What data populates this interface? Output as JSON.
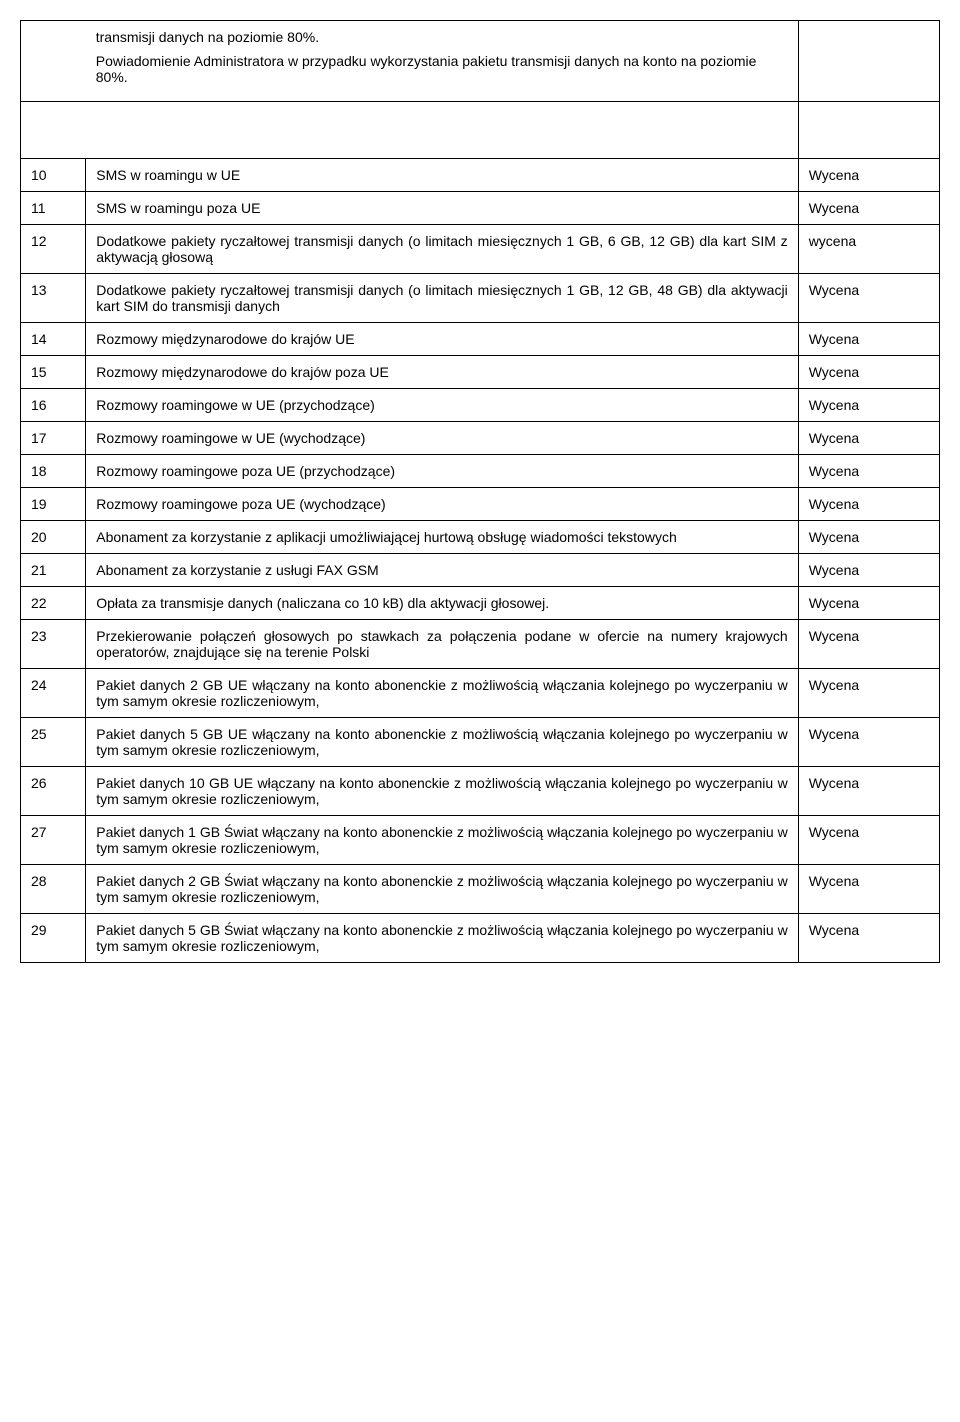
{
  "intro": {
    "line1": "transmisji danych na poziomie 80%.",
    "line2": "Powiadomienie Administratora w przypadku wykorzystania pakietu transmisji danych na konto na poziomie 80%."
  },
  "rows": [
    {
      "num": "10",
      "desc": "SMS w roamingu w UE",
      "val": "Wycena",
      "justify": false
    },
    {
      "num": "11",
      "desc": "SMS w roamingu poza UE",
      "val": "Wycena",
      "justify": false
    },
    {
      "num": "12",
      "desc": "Dodatkowe pakiety ryczałtowej transmisji danych (o limitach miesięcznych 1 GB, 6 GB, 12 GB) dla kart SIM z aktywacją głosową",
      "val": "wycena",
      "justify": true
    },
    {
      "num": "13",
      "desc": "Dodatkowe pakiety ryczałtowej transmisji danych (o limitach miesięcznych 1 GB, 12 GB, 48 GB) dla aktywacji kart SIM do transmisji danych",
      "val": "Wycena",
      "justify": true
    },
    {
      "num": "14",
      "desc": "Rozmowy międzynarodowe do krajów UE",
      "val": "Wycena",
      "justify": false
    },
    {
      "num": "15",
      "desc": "Rozmowy międzynarodowe do krajów poza  UE",
      "val": "Wycena",
      "justify": false
    },
    {
      "num": "16",
      "desc": "Rozmowy roamingowe w UE (przychodzące)",
      "val": "Wycena",
      "justify": false
    },
    {
      "num": "17",
      "desc": "Rozmowy roamingowe w UE (wychodzące)",
      "val": "Wycena",
      "justify": false
    },
    {
      "num": "18",
      "desc": "Rozmowy roamingowe poza  UE (przychodzące)",
      "val": "Wycena",
      "justify": false
    },
    {
      "num": "19",
      "desc": "Rozmowy roamingowe poza  UE (wychodzące)",
      "val": "Wycena",
      "justify": false
    },
    {
      "num": "20",
      "desc": "Abonament za korzystanie z aplikacji umożliwiającej hurtową obsługę wiadomości tekstowych",
      "val": "Wycena",
      "justify": true
    },
    {
      "num": "21",
      "desc": "Abonament za korzystanie z usługi FAX GSM",
      "val": "Wycena",
      "justify": false
    },
    {
      "num": "22",
      "desc": "Opłata za transmisje danych (naliczana co 10 kB) dla aktywacji głosowej.",
      "val": "Wycena",
      "justify": false
    },
    {
      "num": "23",
      "desc": "Przekierowanie połączeń głosowych po stawkach za połączenia podane w ofercie na numery krajowych operatorów, znajdujące się na terenie Polski",
      "val": "Wycena",
      "justify": true
    },
    {
      "num": "24",
      "desc": "Pakiet danych  2 GB UE włączany na konto abonenckie z możliwością włączania kolejnego po wyczerpaniu w tym samym okresie rozliczeniowym,",
      "val": "Wycena",
      "justify": true
    },
    {
      "num": "25",
      "desc": "Pakiet danych  5 GB UE włączany na konto abonenckie z możliwością włączania kolejnego po wyczerpaniu w tym samym okresie rozliczeniowym,",
      "val": "Wycena",
      "justify": true
    },
    {
      "num": "26",
      "desc": "Pakiet danych  10 GB UE włączany na konto abonenckie z możliwością włączania kolejnego po wyczerpaniu w tym samym okresie rozliczeniowym,",
      "val": "Wycena",
      "justify": true
    },
    {
      "num": "27",
      "desc": "Pakiet danych 1 GB  Świat włączany na konto abonenckie z możliwością włączania kolejnego po wyczerpaniu w tym samym okresie rozliczeniowym,",
      "val": "Wycena",
      "justify": true
    },
    {
      "num": "28",
      "desc": "Pakiet danych 2 GB  Świat włączany na konto abonenckie z możliwością włączania kolejnego po wyczerpaniu w tym samym okresie rozliczeniowym,",
      "val": "Wycena",
      "justify": true
    },
    {
      "num": "29",
      "desc": "Pakiet danych 5 GB  Świat włączany na konto abonenckie z możliwością włączania kolejnego po wyczerpaniu w tym samym okresie rozliczeniowym,",
      "val": "Wycena",
      "justify": true
    }
  ]
}
